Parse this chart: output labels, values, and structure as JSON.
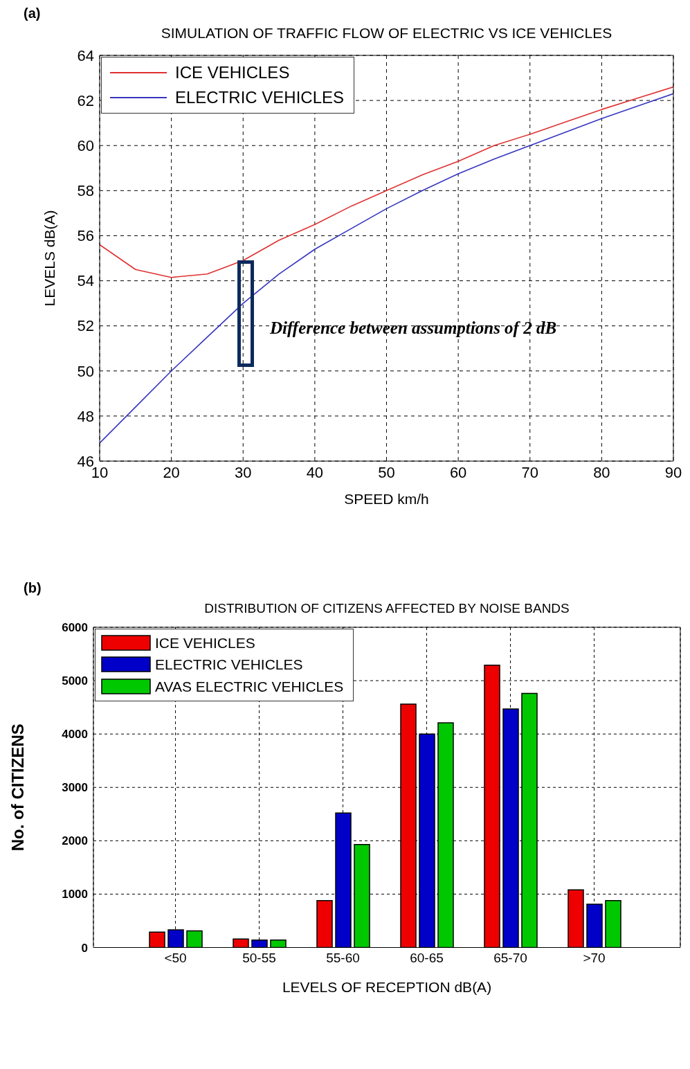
{
  "chart_data": [
    {
      "type": "line",
      "title": "SIMULATION OF TRAFFIC FLOW OF ELECTRIC VS ICE VEHICLES",
      "xlabel": "SPEED km/h",
      "ylabel": "LEVELS dB(A)",
      "annotations": [
        "(a)",
        "Difference between assumptions of 2 dB"
      ],
      "x": [
        10,
        15,
        20,
        25,
        30,
        35,
        40,
        45,
        50,
        55,
        60,
        65,
        70,
        75,
        80,
        85,
        90
      ],
      "series": [
        {
          "name": "ICE VEHICLES",
          "color": "#e03030",
          "values": [
            55.6,
            54.5,
            54.15,
            54.3,
            54.9,
            55.8,
            56.5,
            57.3,
            58.0,
            58.7,
            59.3,
            60.0,
            60.5,
            61.05,
            61.6,
            62.1,
            62.6
          ]
        },
        {
          "name": "ELECTRIC VEHICLES",
          "color": "#3535c0",
          "values": [
            46.8,
            48.4,
            50.0,
            51.5,
            53.0,
            54.3,
            55.4,
            56.3,
            57.2,
            58.0,
            58.75,
            59.4,
            60.0,
            60.6,
            61.2,
            61.75,
            62.3
          ]
        }
      ],
      "xlim": [
        10,
        90
      ],
      "xticks": [
        10,
        20,
        30,
        40,
        50,
        60,
        70,
        80,
        90
      ],
      "ylim": [
        46,
        64
      ],
      "yticks": [
        46,
        48,
        50,
        52,
        54,
        56,
        58,
        60,
        62,
        64
      ],
      "grid": true,
      "legend": "top left",
      "marker": "none",
      "line_style": "solid"
    },
    {
      "type": "bar",
      "title": "DISTRIBUTION OF CITIZENS AFFECTED BY NOISE BANDS",
      "xlabel": "LEVELS OF RECEPTION dB(A)",
      "ylabel": "No. of CITIZENS",
      "annotations": [
        "(b)"
      ],
      "categories": [
        "<50",
        "50-55",
        "55-60",
        "60-65",
        "65-70",
        ">70"
      ],
      "series": [
        {
          "name": "ICE VEHICLES",
          "color": "#ee0000",
          "values": [
            290,
            160,
            880,
            4560,
            5290,
            1080
          ]
        },
        {
          "name": "ELECTRIC VEHICLES",
          "color": "#0000c8",
          "values": [
            330,
            140,
            2520,
            4000,
            4470,
            810
          ]
        },
        {
          "name": "AVAS ELECTRIC VEHICLES",
          "color": "#00c800",
          "values": [
            310,
            140,
            1930,
            4210,
            4760,
            880
          ]
        }
      ],
      "ylim": [
        0,
        6000
      ],
      "yticks": [
        0,
        1000,
        2000,
        3000,
        4000,
        5000,
        6000
      ],
      "grid": true,
      "legend": "top left"
    }
  ]
}
